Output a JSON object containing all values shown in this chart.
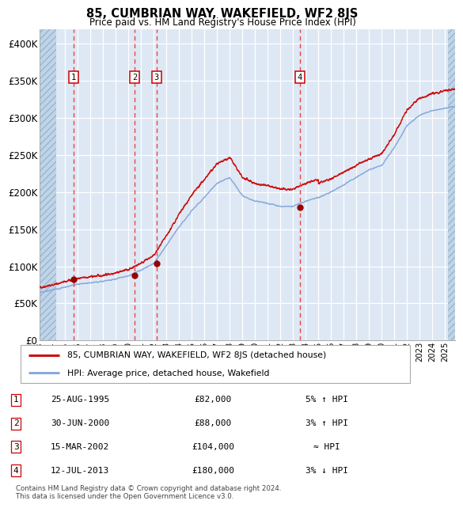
{
  "title": "85, CUMBRIAN WAY, WAKEFIELD, WF2 8JS",
  "subtitle": "Price paid vs. HM Land Registry's House Price Index (HPI)",
  "hpi_label": "HPI: Average price, detached house, Wakefield",
  "property_label": "85, CUMBRIAN WAY, WAKEFIELD, WF2 8JS (detached house)",
  "transactions": [
    {
      "num": 1,
      "date": "25-AUG-1995",
      "year": 1995.65,
      "price": 82000,
      "note": "5% ↑ HPI"
    },
    {
      "num": 2,
      "date": "30-JUN-2000",
      "year": 2000.5,
      "price": 88000,
      "note": "3% ↑ HPI"
    },
    {
      "num": 3,
      "date": "15-MAR-2002",
      "year": 2002.21,
      "price": 104000,
      "note": "≈ HPI"
    },
    {
      "num": 4,
      "date": "12-JUL-2013",
      "year": 2013.53,
      "price": 180000,
      "note": "3% ↓ HPI"
    }
  ],
  "copyright": "Contains HM Land Registry data © Crown copyright and database right 2024.\nThis data is licensed under the Open Government Licence v3.0.",
  "ylim": [
    0,
    420000
  ],
  "xlim_start": 1993.0,
  "xlim_end": 2025.8,
  "yticks": [
    0,
    50000,
    100000,
    150000,
    200000,
    250000,
    300000,
    350000,
    400000
  ],
  "ytick_labels": [
    "£0",
    "£50K",
    "£100K",
    "£150K",
    "£200K",
    "£250K",
    "£300K",
    "£350K",
    "£400K"
  ],
  "hatch_left_end": 1994.3,
  "hatch_right_start": 2025.2,
  "bg_color": "#dde8f4",
  "hatch_color": "#c0d4e8",
  "grid_color": "#ffffff",
  "red_line_color": "#cc1111",
  "blue_line_color": "#88aadd",
  "marker_color": "#990000",
  "dashed_line_color": "#ee4444",
  "box_edge_color": "#cc0000",
  "text_color": "#222222",
  "hpi_anchors_x": [
    1993,
    1994,
    1995,
    1996,
    1997,
    1998,
    1999,
    2000,
    2001,
    2002,
    2003,
    2004,
    2005,
    2006,
    2007,
    2008,
    2009,
    2010,
    2011,
    2012,
    2013,
    2014,
    2015,
    2016,
    2017,
    2018,
    2019,
    2020,
    2021,
    2022,
    2023,
    2024,
    2025.5
  ],
  "hpi_anchors_v": [
    65000,
    68000,
    72000,
    76000,
    78000,
    80000,
    83000,
    87000,
    95000,
    104000,
    128000,
    153000,
    175000,
    193000,
    212000,
    220000,
    195000,
    188000,
    185000,
    181000,
    181000,
    188000,
    193000,
    200000,
    210000,
    220000,
    230000,
    236000,
    260000,
    290000,
    304000,
    310000,
    315000
  ]
}
